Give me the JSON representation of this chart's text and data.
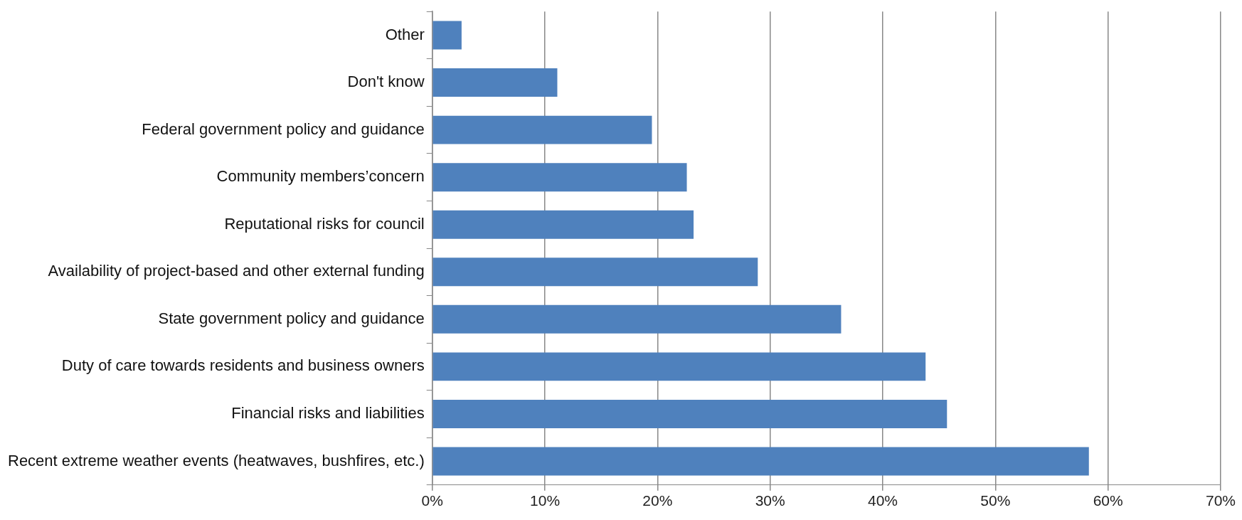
{
  "chart_data": {
    "type": "bar",
    "orientation": "horizontal",
    "categories": [
      "Other",
      "Don't know",
      "Federal government policy and guidance",
      "Community members’concern",
      "Reputational risks for council",
      "Availability of project-based and other external funding",
      "State government policy and guidance",
      "Duty of care towards residents and business owners",
      "Financial risks and liabilities",
      "Recent extreme weather events (heatwaves, bushfires, etc.)"
    ],
    "values": [
      2.6,
      11.1,
      19.5,
      22.6,
      23.2,
      28.9,
      36.3,
      43.8,
      45.7,
      58.3
    ],
    "color": "#4f81bd",
    "xlim": [
      0,
      70
    ],
    "xticks": [
      {
        "value": 0,
        "label": "0%"
      },
      {
        "value": 10,
        "label": "10%"
      },
      {
        "value": 20,
        "label": "20%"
      },
      {
        "value": 30,
        "label": "30%"
      },
      {
        "value": 40,
        "label": "40%"
      },
      {
        "value": 50,
        "label": "50%"
      },
      {
        "value": 60,
        "label": "60%"
      },
      {
        "value": 70,
        "label": "70%"
      }
    ],
    "grid": "x",
    "legend": false
  }
}
